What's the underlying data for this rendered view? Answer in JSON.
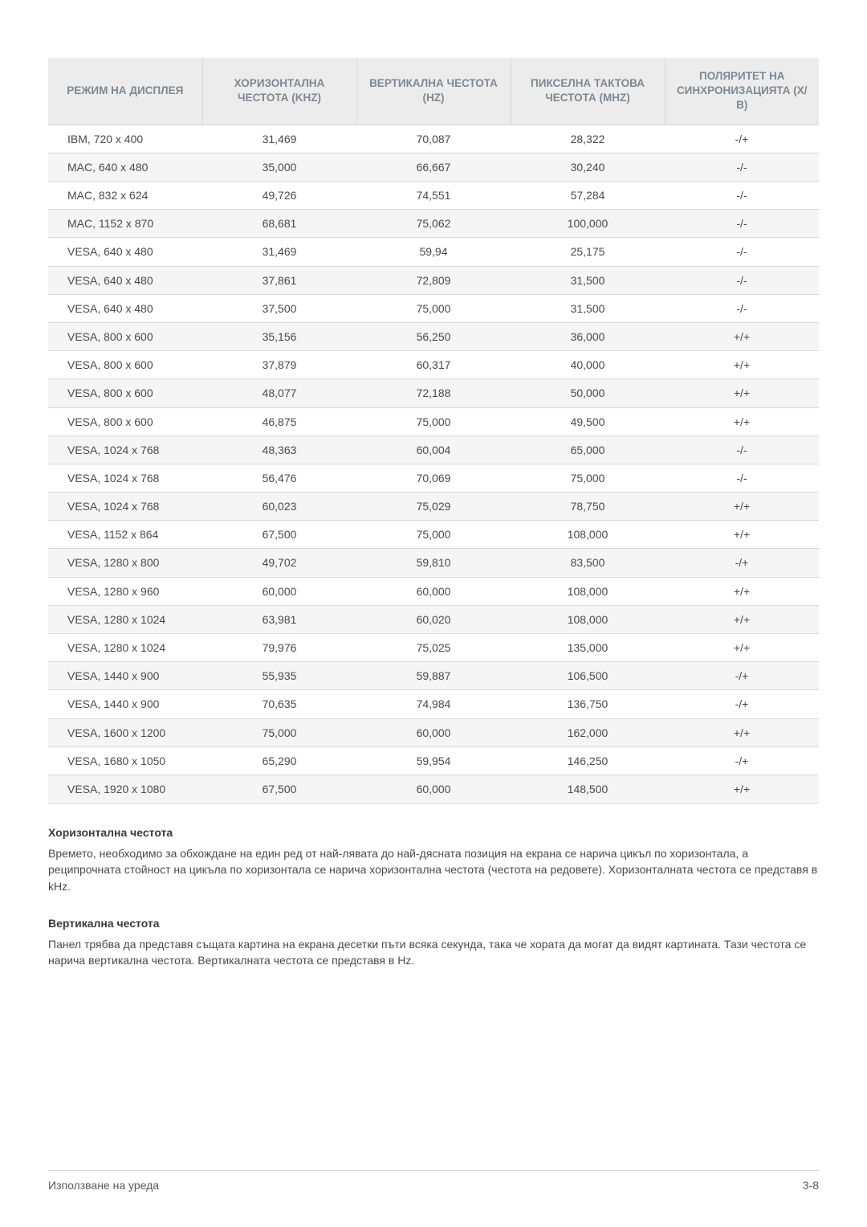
{
  "table": {
    "column_widths_pct": [
      20,
      20,
      20,
      20,
      20
    ],
    "header_bg": "#ececec",
    "header_color": "#7e8892",
    "row_even_bg": "#f5f5f5",
    "row_odd_bg": "#ffffff",
    "border_color": "#d8d8d8",
    "columns": [
      "РЕЖИМ НА ДИСПЛЕЯ",
      "ХОРИЗОНТАЛНА ЧЕСТОТА (KHZ)",
      "ВЕРТИКАЛНА ЧЕСТОТА (HZ)",
      "ПИКСЕЛНА ТАКТОВА ЧЕСТОТА (MHZ)",
      "ПОЛЯРИТЕТ НА СИНХРОНИЗАЦИЯТА (Х/В)"
    ],
    "rows": [
      [
        "IBM, 720 x 400",
        "31,469",
        "70,087",
        "28,322",
        "-/+"
      ],
      [
        "MAC, 640 x 480",
        "35,000",
        "66,667",
        "30,240",
        "-/-"
      ],
      [
        "MAC, 832 x 624",
        "49,726",
        "74,551",
        "57,284",
        "-/-"
      ],
      [
        "MAC, 1152 x 870",
        "68,681",
        "75,062",
        "100,000",
        "-/-"
      ],
      [
        "VESA, 640 x 480",
        "31,469",
        "59,94",
        "25,175",
        "-/-"
      ],
      [
        "VESA, 640 x 480",
        "37,861",
        "72,809",
        "31,500",
        "-/-"
      ],
      [
        "VESA, 640 x 480",
        "37,500",
        "75,000",
        "31,500",
        "-/-"
      ],
      [
        "VESA, 800 x 600",
        "35,156",
        "56,250",
        "36,000",
        "+/+"
      ],
      [
        "VESA, 800 x 600",
        "37,879",
        "60,317",
        "40,000",
        "+/+"
      ],
      [
        "VESA, 800 x 600",
        "48,077",
        "72,188",
        "50,000",
        "+/+"
      ],
      [
        "VESA, 800 x 600",
        "46,875",
        "75,000",
        "49,500",
        "+/+"
      ],
      [
        "VESA, 1024 x 768",
        "48,363",
        "60,004",
        "65,000",
        "-/-"
      ],
      [
        "VESA, 1024 x 768",
        "56,476",
        "70,069",
        "75,000",
        "-/-"
      ],
      [
        "VESA, 1024 x 768",
        "60,023",
        "75,029",
        "78,750",
        "+/+"
      ],
      [
        "VESA, 1152 x 864",
        "67,500",
        "75,000",
        "108,000",
        "+/+"
      ],
      [
        "VESA, 1280 x 800",
        "49,702",
        "59,810",
        "83,500",
        "-/+"
      ],
      [
        "VESA, 1280 x 960",
        "60,000",
        "60,000",
        "108,000",
        "+/+"
      ],
      [
        "VESA, 1280 x 1024",
        "63,981",
        "60,020",
        "108,000",
        "+/+"
      ],
      [
        "VESA, 1280 x 1024",
        "79,976",
        "75,025",
        "135,000",
        "+/+"
      ],
      [
        "VESA, 1440 x 900",
        "55,935",
        "59,887",
        "106,500",
        "-/+"
      ],
      [
        "VESA, 1440 x 900",
        "70,635",
        "74,984",
        "136,750",
        "-/+"
      ],
      [
        "VESA, 1600 x 1200",
        "75,000",
        "60,000",
        "162,000",
        "+/+"
      ],
      [
        "VESA, 1680 x 1050",
        "65,290",
        "59,954",
        "146,250",
        "-/+"
      ],
      [
        "VESA, 1920 x 1080",
        "67,500",
        "60,000",
        "148,500",
        "+/+"
      ]
    ]
  },
  "sections": [
    {
      "title": "Хоризонтална честота",
      "body": "Времето, необходимо за обхождане на един ред от най-лявата до най-дясната позиция на екрана се нарича цикъл по хоризонтала, а реципрочната стойност на цикъла по хоризонтала се нарича хоризонтална честота (честота на редовете). Хоризонталната честота се представя в kHz."
    },
    {
      "title": "Вертикална честота",
      "body": "Панел трябва да представя същата картина на екрана десетки пъти всяка секунда, така че хората да могат да видят картината. Тази честота се нарича вертикална честота. Вертикалната честота се представя в Hz."
    }
  ],
  "footer": {
    "left": "Използване на уреда",
    "right": "3-8"
  }
}
